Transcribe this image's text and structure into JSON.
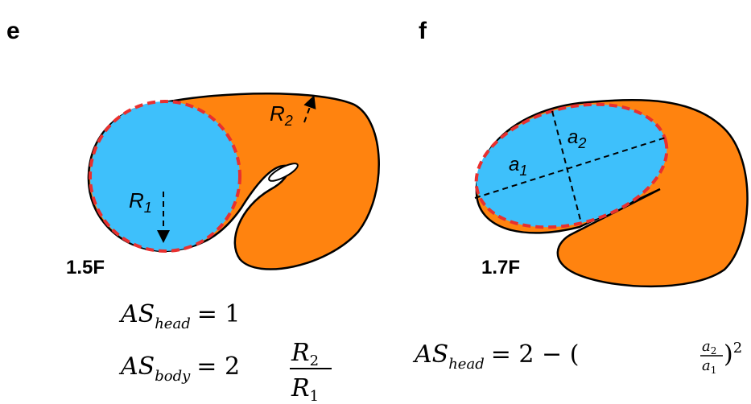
{
  "panels": [
    {
      "letter": "e",
      "size_label": "1.5F",
      "shape_labels": [
        {
          "base": "R",
          "sub": "2"
        },
        {
          "base": "R",
          "sub": "1"
        }
      ],
      "equations": [
        {
          "lhs": "AS",
          "sub": "head",
          "op": "= 1"
        },
        {
          "lhs": "AS",
          "sub": "body",
          "op": "= 2",
          "num": {
            "base": "R",
            "sub": "2"
          },
          "den": {
            "base": "R",
            "sub": "1"
          }
        }
      ]
    },
    {
      "letter": "f",
      "size_label": "1.7F",
      "shape_labels": [
        {
          "base": "a",
          "sub": "2"
        },
        {
          "base": "a",
          "sub": "1"
        }
      ],
      "equations": [
        {
          "lhs": "AS",
          "sub": "head",
          "op": "= 2 − (",
          "num": {
            "base": "a",
            "sub": "2"
          },
          "den": {
            "base": "a",
            "sub": "1"
          },
          "close": ")",
          "sup": "2"
        }
      ]
    }
  ]
}
